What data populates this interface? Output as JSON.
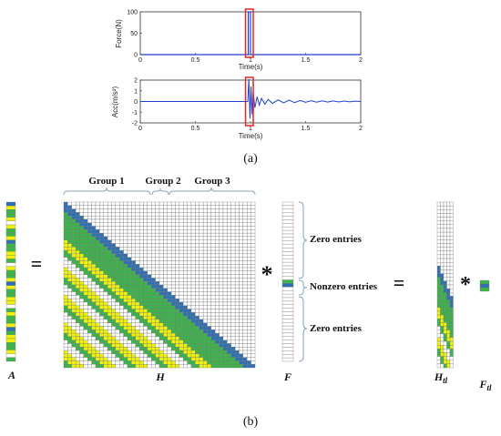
{
  "chart_data": [
    {
      "type": "line",
      "xlabel": "Time(s)",
      "ylabel": "Force(N)",
      "xlim": [
        0,
        2
      ],
      "ylim": [
        0,
        100
      ],
      "xticks": [
        "0",
        "0.5",
        "1",
        "1.5",
        "2"
      ],
      "yticks": [
        "0",
        "50",
        "100"
      ],
      "series": [
        {
          "color": "#1f3fd0",
          "points": [
            [
              0,
              0
            ],
            [
              0.98,
              0
            ],
            [
              0.98,
              100
            ],
            [
              1.0,
              100
            ],
            [
              1.0,
              0
            ],
            [
              2,
              0
            ]
          ]
        }
      ],
      "highlight_window": [
        0.955,
        1.025
      ]
    },
    {
      "type": "line",
      "xlabel": "Time(s)",
      "ylabel": "Acc(m/s²)",
      "xlim": [
        0,
        2
      ],
      "ylim": [
        -2,
        2
      ],
      "xticks": [
        "0",
        "0.5",
        "1",
        "1.5",
        "2"
      ],
      "yticks": [
        "-2",
        "-1",
        "0",
        "1",
        "2"
      ],
      "series": [
        {
          "color": "#1f3fd0",
          "points": [
            [
              0,
              0
            ],
            [
              0.975,
              0
            ],
            [
              0.985,
              2.1
            ],
            [
              0.995,
              -1.6
            ],
            [
              1.005,
              1.4
            ],
            [
              1.015,
              -1.2
            ],
            [
              1.025,
              0.9
            ],
            [
              1.04,
              -0.6
            ],
            [
              1.06,
              0.45
            ],
            [
              1.08,
              -0.35
            ],
            [
              1.1,
              0.3
            ],
            [
              1.13,
              -0.25
            ],
            [
              1.16,
              0.2
            ],
            [
              1.2,
              -0.18
            ],
            [
              1.25,
              0.15
            ],
            [
              1.3,
              -0.13
            ],
            [
              1.35,
              0.12
            ],
            [
              1.4,
              -0.1
            ],
            [
              1.45,
              0.09
            ],
            [
              1.5,
              -0.08
            ],
            [
              1.55,
              0.07
            ],
            [
              1.6,
              -0.06
            ],
            [
              1.65,
              0.06
            ],
            [
              1.7,
              -0.05
            ],
            [
              1.75,
              0.05
            ],
            [
              1.8,
              -0.04
            ],
            [
              1.85,
              0.04
            ],
            [
              1.9,
              -0.03
            ],
            [
              1.95,
              0.03
            ],
            [
              2.0,
              0
            ]
          ]
        }
      ],
      "highlight_window": [
        0.955,
        1.025
      ]
    }
  ],
  "labels": {
    "panel_a": "(a)",
    "panel_b": "(b)",
    "group1": "Group 1",
    "group2": "Group 2",
    "group3": "Group 3",
    "zero_top": "Zero entries",
    "nonzero": "Nonzero entries",
    "zero_bottom": "Zero entries",
    "eq1": "=",
    "eq2": "=",
    "star1": "*",
    "star2": "*",
    "var_a": "A",
    "var_h": "H",
    "var_f": "F",
    "var_htl": "H",
    "var_htl_sub": "tl",
    "var_ftl": "F",
    "var_ftl_sub": "tl"
  },
  "colors": {
    "blue": "#2f6fb3",
    "green": "#3bb54a",
    "yellow": "#eef20a",
    "grid": "#7a7a7a",
    "frame_red": "#e32626",
    "signal_blue": "#1f3fd0"
  }
}
